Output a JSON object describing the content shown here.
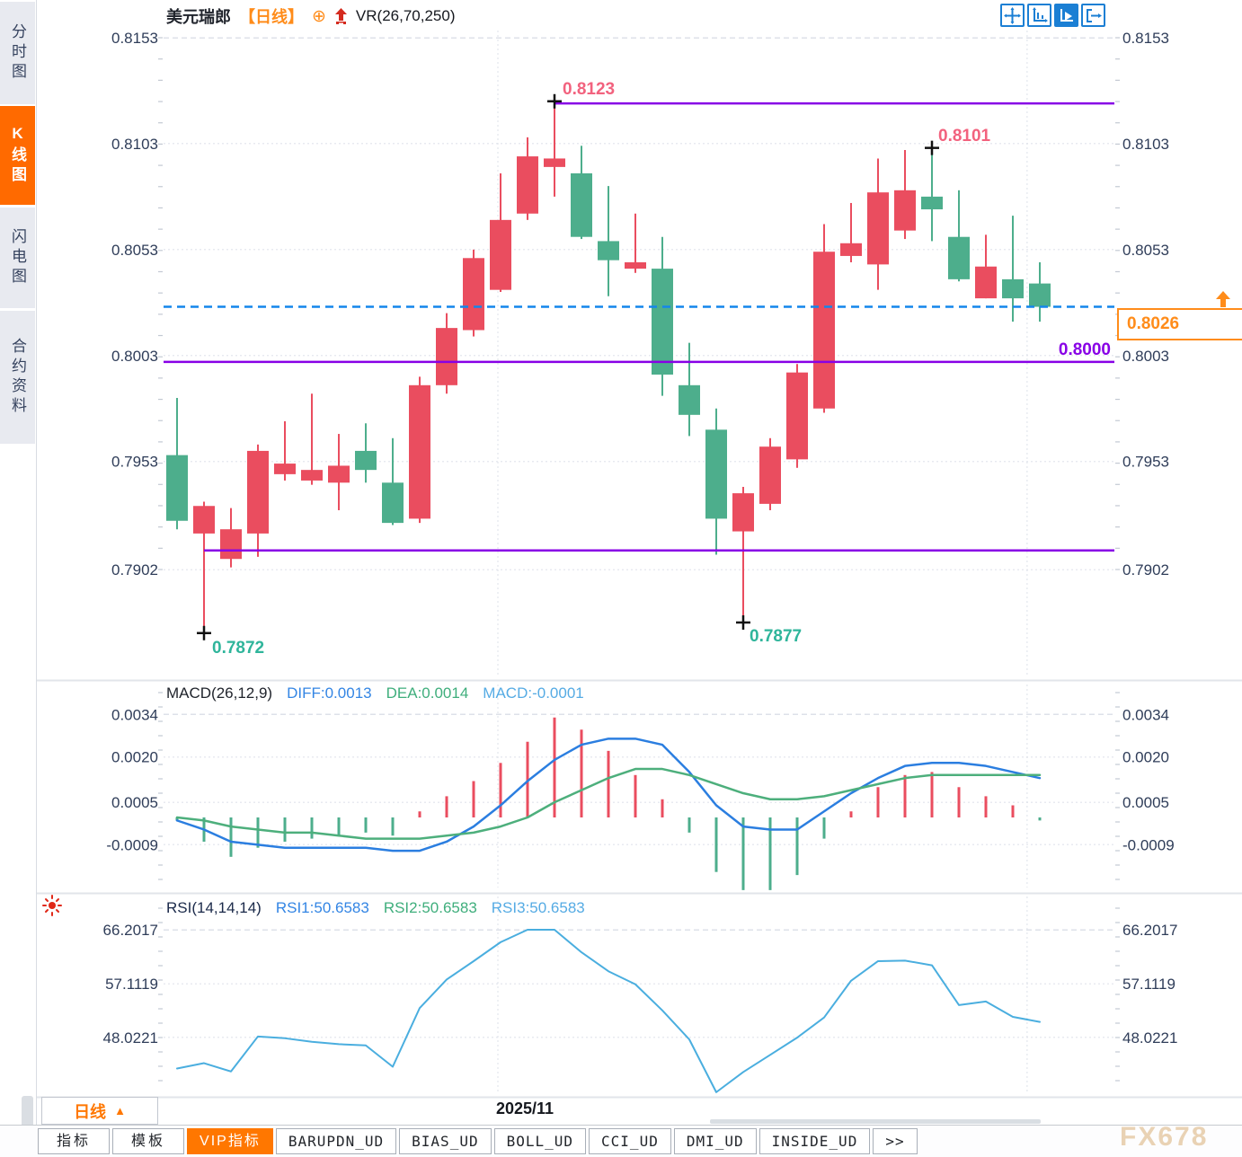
{
  "sidebar": {
    "items": [
      {
        "label": "分时图",
        "active": false
      },
      {
        "label": "K线图",
        "active": true
      },
      {
        "label": "闪电图",
        "active": false
      },
      {
        "label": "合约资料",
        "active": false
      }
    ]
  },
  "titlebar": {
    "symbol": "美元瑞郎",
    "period_tag": "【日线】",
    "target_icon": "⊕",
    "indicator": "VR(26,70,250)"
  },
  "toolbar": {
    "icons": [
      "crosshair-move-icon",
      "axis-pan-icon",
      "play-chart-icon",
      "exit-chart-icon"
    ],
    "active_index": 2
  },
  "annotations": {
    "high1": "0.8123",
    "high2": "0.8101",
    "low1": "0.7872",
    "low2": "0.7877",
    "support": "0.8000",
    "current_price": "0.8026"
  },
  "macd_header": {
    "name": "MACD(26,12,9)",
    "diff": "DIFF:0.0013",
    "dea": "DEA:0.0014",
    "macd": "MACD:-0.0001"
  },
  "rsi_header": {
    "name": "RSI(14,14,14)",
    "rsi1": "RSI1:50.6583",
    "rsi2": "RSI2:50.6583",
    "rsi3": "RSI3:50.6583"
  },
  "bottom": {
    "period_button": "日线",
    "period_triangle": "▲",
    "timeline_label": "2025/11",
    "tabs": [
      {
        "label": "指标",
        "active": false
      },
      {
        "label": "模板",
        "active": false
      },
      {
        "label": "VIP指标",
        "active": true
      },
      {
        "label": "BARUPDN_UD",
        "active": false
      },
      {
        "label": "BIAS_UD",
        "active": false
      },
      {
        "label": "BOLL_UD",
        "active": false
      },
      {
        "label": "CCI_UD",
        "active": false
      },
      {
        "label": "DMI_UD",
        "active": false
      },
      {
        "label": "INSIDE_UD",
        "active": false
      },
      {
        "label": ">>",
        "active": false
      }
    ]
  },
  "watermark": "FX678",
  "chart_data": {
    "type": "candlestick",
    "symbol": "美元瑞郎",
    "period": "日线",
    "overlay_indicator": "VR(26,70,250)",
    "price_axis": {
      "labels": [
        "0.8153",
        "0.8103",
        "0.8053",
        "0.8003",
        "0.7953",
        "0.7902"
      ],
      "values": [
        0.8153,
        0.8103,
        0.8053,
        0.8003,
        0.7953,
        0.7902
      ]
    },
    "candles": [
      [
        0.7956,
        0.7983,
        0.7921,
        0.7925
      ],
      [
        0.7919,
        0.7934,
        0.7872,
        0.7932
      ],
      [
        0.7907,
        0.7931,
        0.7903,
        0.7921
      ],
      [
        0.7919,
        0.7961,
        0.7908,
        0.7958
      ],
      [
        0.7947,
        0.7972,
        0.7944,
        0.7952
      ],
      [
        0.7944,
        0.7985,
        0.7942,
        0.7949
      ],
      [
        0.7943,
        0.7966,
        0.793,
        0.7951
      ],
      [
        0.7958,
        0.7971,
        0.7943,
        0.7949
      ],
      [
        0.7943,
        0.7964,
        0.7923,
        0.7924
      ],
      [
        0.7926,
        0.7993,
        0.7924,
        0.7989
      ],
      [
        0.7989,
        0.8023,
        0.7985,
        0.8016
      ],
      [
        0.8015,
        0.8053,
        0.8012,
        0.8049
      ],
      [
        0.8034,
        0.8089,
        0.8033,
        0.8067
      ],
      [
        0.807,
        0.8106,
        0.8067,
        0.8097
      ],
      [
        0.8092,
        0.8123,
        0.8078,
        0.8096
      ],
      [
        0.8089,
        0.8102,
        0.8058,
        0.8059
      ],
      [
        0.8057,
        0.8083,
        0.8031,
        0.8048
      ],
      [
        0.8044,
        0.807,
        0.8042,
        0.8047
      ],
      [
        0.8044,
        0.8059,
        0.7984,
        0.7994
      ],
      [
        0.7989,
        0.8009,
        0.7965,
        0.7975
      ],
      [
        0.7968,
        0.7978,
        0.7909,
        0.7926
      ],
      [
        0.792,
        0.7941,
        0.7877,
        0.7938
      ],
      [
        0.7933,
        0.7964,
        0.793,
        0.796
      ],
      [
        0.7954,
        0.7999,
        0.795,
        0.7995
      ],
      [
        0.7978,
        0.8065,
        0.7976,
        0.8052
      ],
      [
        0.805,
        0.8075,
        0.8047,
        0.8056
      ],
      [
        0.8046,
        0.8096,
        0.8034,
        0.808
      ],
      [
        0.8062,
        0.81,
        0.8058,
        0.8081
      ],
      [
        0.8078,
        0.8101,
        0.8057,
        0.8072
      ],
      [
        0.8059,
        0.8081,
        0.8038,
        0.8039
      ],
      [
        0.803,
        0.806,
        0.803,
        0.8045
      ],
      [
        0.8039,
        0.8069,
        0.8019,
        0.803
      ],
      [
        0.8037,
        0.8047,
        0.8019,
        0.8026
      ]
    ],
    "markers": [
      {
        "index": 14,
        "price": 0.8123,
        "label": "0.8123",
        "kind": "high"
      },
      {
        "index": 28,
        "price": 0.8101,
        "label": "0.8101",
        "kind": "high"
      },
      {
        "index": 1,
        "price": 0.7872,
        "label": "0.7872",
        "kind": "low"
      },
      {
        "index": 21,
        "price": 0.7877,
        "label": "0.7877",
        "kind": "low"
      }
    ],
    "hlines": [
      {
        "price": 0.8122,
        "from_index": 14
      },
      {
        "price": 0.8,
        "from_index": null
      },
      {
        "price": 0.7911,
        "from_index": 1
      }
    ],
    "current_price": 0.8026,
    "x_axis": {
      "month_label": "2025/11",
      "gridline_indices": [
        11.9,
        31.53
      ]
    },
    "macd": {
      "title": "MACD(26,12,9)",
      "ticks": [
        "0.0034",
        "0.0020",
        "0.0005",
        "-0.0009"
      ],
      "tick_values": [
        0.0034,
        0.002,
        0.0005,
        -0.0009
      ],
      "diff": [
        -0.0001,
        -0.0004,
        -0.0008,
        -0.0009,
        -0.001,
        -0.001,
        -0.001,
        -0.001,
        -0.0011,
        -0.0011,
        -0.0008,
        -0.0003,
        0.0004,
        0.0012,
        0.0019,
        0.0024,
        0.0026,
        0.0026,
        0.0024,
        0.0015,
        0.0004,
        -0.0003,
        -0.0004,
        -0.0004,
        0.0002,
        0.0008,
        0.0013,
        0.0017,
        0.0018,
        0.0018,
        0.0017,
        0.0015,
        0.0013
      ],
      "dea": [
        0.0,
        -0.0001,
        -0.0003,
        -0.0004,
        -0.0005,
        -0.0005,
        -0.0006,
        -0.0007,
        -0.0007,
        -0.0007,
        -0.0006,
        -0.0005,
        -0.0003,
        0.0,
        0.0005,
        0.0009,
        0.0013,
        0.0016,
        0.0016,
        0.0014,
        0.0011,
        0.0008,
        0.0006,
        0.0006,
        0.0007,
        0.0009,
        0.0011,
        0.0013,
        0.0014,
        0.0014,
        0.0014,
        0.0014,
        0.0014
      ],
      "hist": [
        -0.0001,
        -0.0008,
        -0.0013,
        -0.001,
        -0.0008,
        -0.0007,
        -0.0006,
        -0.0005,
        -0.0006,
        0.0002,
        0.0007,
        0.0012,
        0.0018,
        0.0025,
        0.0033,
        0.0029,
        0.0022,
        0.0014,
        0.0006,
        -0.0005,
        -0.0018,
        -0.0024,
        -0.0024,
        -0.0019,
        -0.0007,
        0.0002,
        0.001,
        0.0014,
        0.0015,
        0.001,
        0.0007,
        0.0004,
        -0.0001
      ]
    },
    "rsi": {
      "title": "RSI(14,14,14)",
      "ticks": [
        "66.2017",
        "57.1119",
        "48.0221"
      ],
      "tick_values": [
        66.2017,
        57.1119,
        48.0221
      ],
      "values": [
        42.8,
        43.7,
        42.3,
        48.2,
        47.9,
        47.3,
        46.9,
        46.7,
        43.1,
        53.0,
        57.8,
        60.9,
        64.1,
        66.2,
        66.2,
        62.4,
        59.2,
        57.0,
        52.6,
        47.7,
        38.8,
        42.2,
        45.1,
        48.0,
        51.4,
        57.6,
        60.9,
        61.0,
        60.2,
        53.5,
        54.1,
        51.5,
        50.66
      ]
    },
    "colors": {
      "up": "#EA4D5F",
      "down": "#4DAE8C",
      "diff_line": "#2B7EE0",
      "dea_line": "#4DAF7C",
      "rsi_line": "#4AAEDF",
      "level_line": "#8800E6",
      "current_line": "#1486EB",
      "accent": "#FF7700"
    }
  }
}
